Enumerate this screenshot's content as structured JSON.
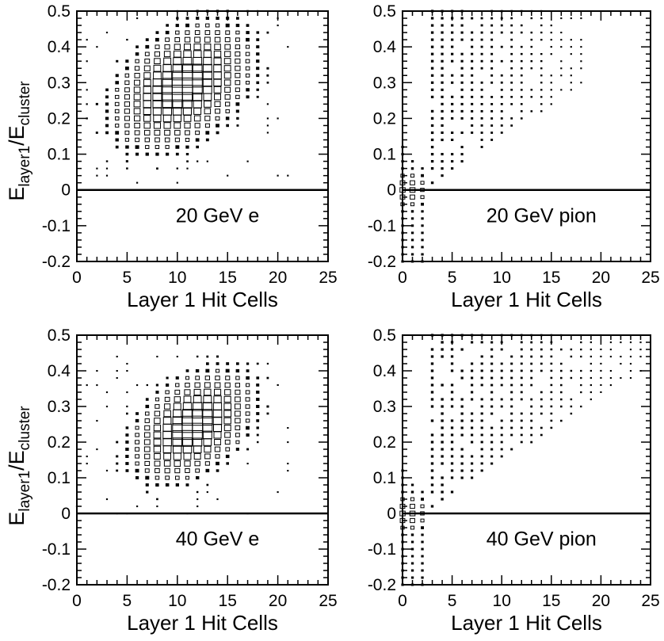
{
  "figure": {
    "ylabel_main": "E",
    "ylabel_sub1": "layer1",
    "ylabel_mid": "/E",
    "ylabel_sub2": "cluster",
    "xlabel": "Layer 1 Hit Cells"
  },
  "chart_data": [
    {
      "type": "heatmap",
      "label": "20 GeV e",
      "xlabel": "Layer 1 Hit Cells",
      "ylabel": "E_layer1/E_cluster",
      "xlim": [
        0,
        25
      ],
      "ylim": [
        -0.2,
        0.5
      ],
      "xticks": [
        "0",
        "5",
        "10",
        "15",
        "20",
        "25"
      ],
      "yticks": [
        "-0.2",
        "-0.1",
        "0",
        "0.1",
        "0.2",
        "0.3",
        "0.4",
        "0.5"
      ],
      "dist": {
        "kind": "electron",
        "cx": 10.5,
        "cy": 0.29,
        "sx": 3.2,
        "sy": 0.075,
        "tilt": 0.01,
        "xmin": 1,
        "xmax": 21,
        "ymin": 0.02,
        "ymax": 0.5
      }
    },
    {
      "type": "heatmap",
      "label": "20 GeV pion",
      "xlabel": "Layer 1 Hit Cells",
      "ylabel": "",
      "xlim": [
        0,
        25
      ],
      "ylim": [
        -0.2,
        0.5
      ],
      "xticks": [
        "0",
        "5",
        "10",
        "15",
        "20",
        "25"
      ],
      "yticks": [
        "-0.2",
        "-0.1",
        "0",
        "0.1",
        "0.2",
        "0.3",
        "0.4",
        "0.5"
      ],
      "dist": {
        "kind": "pion",
        "xmax": 18.5,
        "peak": 0.0,
        "tailmax": 0.5
      }
    },
    {
      "type": "heatmap",
      "label": "40 GeV e",
      "xlabel": "Layer 1 Hit Cells",
      "ylabel": "E_layer1/E_cluster",
      "xlim": [
        0,
        25
      ],
      "ylim": [
        -0.2,
        0.5
      ],
      "xticks": [
        "0",
        "5",
        "10",
        "15",
        "20",
        "25"
      ],
      "yticks": [
        "-0.2",
        "-0.1",
        "0",
        "0.1",
        "0.2",
        "0.3",
        "0.4",
        "0.5"
      ],
      "dist": {
        "kind": "electron",
        "cx": 11.5,
        "cy": 0.245,
        "sx": 2.8,
        "sy": 0.065,
        "tilt": 0.011,
        "xmin": 0,
        "xmax": 21,
        "ymin": 0.0,
        "ymax": 0.45
      }
    },
    {
      "type": "heatmap",
      "label": "40 GeV pion",
      "xlabel": "Layer 1 Hit Cells",
      "ylabel": "",
      "xlim": [
        0,
        25
      ],
      "ylim": [
        -0.2,
        0.5
      ],
      "xticks": [
        "0",
        "5",
        "10",
        "15",
        "20",
        "25"
      ],
      "yticks": [
        "-0.2",
        "-0.1",
        "0",
        "0.1",
        "0.2",
        "0.3",
        "0.4",
        "0.5"
      ],
      "dist": {
        "kind": "pion",
        "xmax": 24,
        "peak": 0.0,
        "tailmax": 0.5
      }
    }
  ]
}
